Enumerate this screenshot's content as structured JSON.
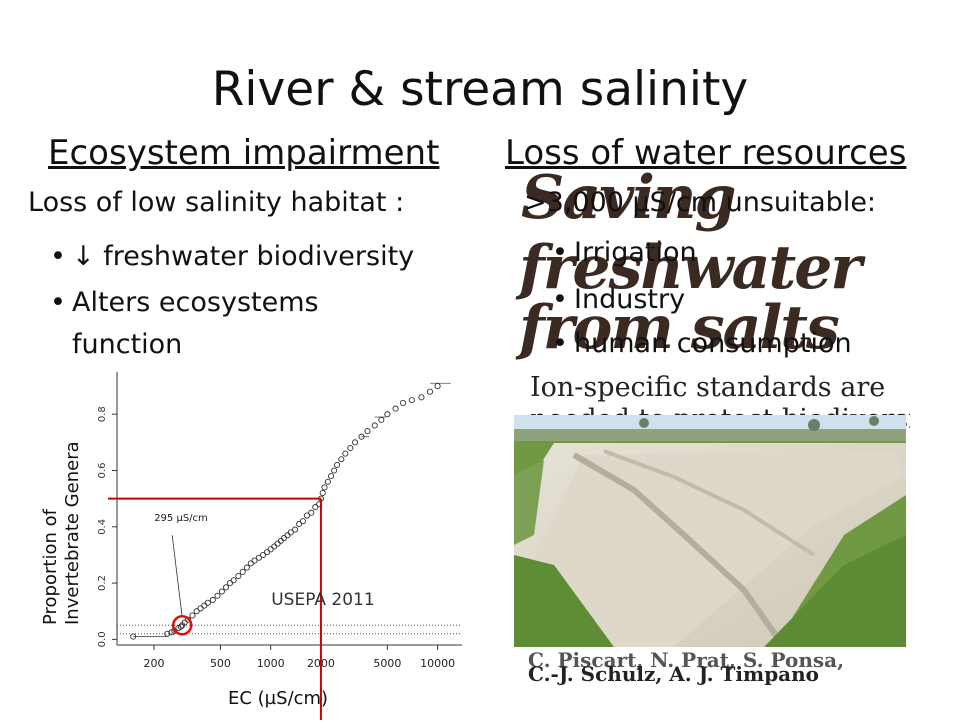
{
  "slide": {
    "title": "River & stream salinity",
    "left": {
      "heading": "Ecosystem impairment",
      "intro": "Loss of low salinity habitat :",
      "bullets": [
        "↓ freshwater biodiversity",
        "Alters ecosystems",
        "function"
      ]
    },
    "right": {
      "heading": "Loss of water resources",
      "intro": ">3,000 µS/cm unsuitable:",
      "bullets": [
        "Irrigation",
        "Industry",
        "human consumption"
      ]
    }
  },
  "paper": {
    "title_lines": [
      "Saving",
      "freshwater",
      "from salts"
    ],
    "subtitle": "Ion-specific standards are",
    "subtitle_2": "needed to protect biodiversity",
    "authors_1": "C. Piscart,",
    "authors_2": "N. Prat,",
    "authors_3": "S. Ponsa,",
    "authors_4": "C.-J. Schulz,",
    "authors_5": "A. J. Timpano"
  },
  "photo": {
    "alt": "salt-affected agricultural field"
  },
  "chart_data": {
    "type": "scatter",
    "title": "",
    "xlabel": "EC (µS/cm)",
    "ylabel": "Proportion of Invertebrate Genera",
    "ylabel_lines": [
      "Proportion of",
      "Invertebrate Genera"
    ],
    "x_scale": "log",
    "xlim": [
      120,
      14000
    ],
    "ylim": [
      -0.02,
      0.95
    ],
    "x_ticks": [
      200,
      500,
      1000,
      2000,
      5000,
      10000
    ],
    "x_tick_labels": [
      "200",
      "500",
      "1000",
      "2000",
      "5000",
      "10000"
    ],
    "y_ticks": [
      0.0,
      0.2,
      0.4,
      0.6,
      0.8
    ],
    "y_tick_labels": [
      "0.0",
      "0.2",
      "0.4",
      "0.6",
      "0.8"
    ],
    "annotations": [
      {
        "text": "295 µS/cm",
        "x": 295,
        "y": 0.05
      },
      {
        "text": "USEPA 2011",
        "x": 2000,
        "y": 0.5
      }
    ],
    "threshold_x": 2000,
    "threshold_y": 0.5,
    "hline_dotted": [
      0.05,
      0.02
    ],
    "series": [
      {
        "points": [
          [
            150,
            0.01
          ],
          [
            240,
            0.02
          ],
          [
            255,
            0.025
          ],
          [
            265,
            0.03
          ],
          [
            280,
            0.04
          ],
          [
            290,
            0.045
          ],
          [
            295,
            0.05
          ],
          [
            305,
            0.06
          ],
          [
            320,
            0.07
          ],
          [
            340,
            0.085
          ],
          [
            360,
            0.1
          ],
          [
            380,
            0.11
          ],
          [
            400,
            0.12
          ],
          [
            420,
            0.13
          ],
          [
            450,
            0.14
          ],
          [
            480,
            0.155
          ],
          [
            510,
            0.17
          ],
          [
            540,
            0.185
          ],
          [
            570,
            0.2
          ],
          [
            600,
            0.21
          ],
          [
            640,
            0.225
          ],
          [
            680,
            0.24
          ],
          [
            720,
            0.255
          ],
          [
            760,
            0.27
          ],
          [
            800,
            0.28
          ],
          [
            850,
            0.29
          ],
          [
            900,
            0.3
          ],
          [
            950,
            0.31
          ],
          [
            1000,
            0.32
          ],
          [
            1050,
            0.33
          ],
          [
            1100,
            0.34
          ],
          [
            1150,
            0.35
          ],
          [
            1200,
            0.36
          ],
          [
            1260,
            0.37
          ],
          [
            1320,
            0.38
          ],
          [
            1400,
            0.39
          ],
          [
            1480,
            0.41
          ],
          [
            1560,
            0.42
          ],
          [
            1650,
            0.44
          ],
          [
            1750,
            0.45
          ],
          [
            1850,
            0.47
          ],
          [
            1950,
            0.48
          ],
          [
            2000,
            0.5
          ],
          [
            2050,
            0.52
          ],
          [
            2100,
            0.54
          ],
          [
            2200,
            0.56
          ],
          [
            2300,
            0.58
          ],
          [
            2400,
            0.6
          ],
          [
            2500,
            0.62
          ],
          [
            2650,
            0.64
          ],
          [
            2800,
            0.66
          ],
          [
            3000,
            0.68
          ],
          [
            3200,
            0.7
          ],
          [
            3500,
            0.72
          ],
          [
            3800,
            0.74
          ],
          [
            4200,
            0.76
          ],
          [
            4600,
            0.78
          ],
          [
            5000,
            0.8
          ],
          [
            5600,
            0.82
          ],
          [
            6200,
            0.84
          ],
          [
            7000,
            0.85
          ],
          [
            8000,
            0.86
          ],
          [
            9000,
            0.88
          ],
          [
            10000,
            0.9
          ]
        ]
      }
    ]
  }
}
